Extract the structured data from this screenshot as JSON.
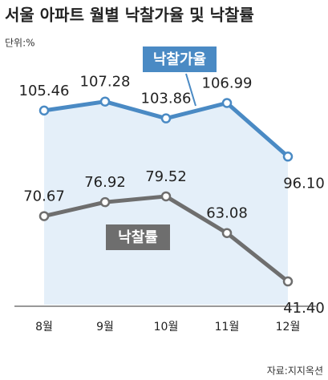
{
  "chart_data": {
    "type": "line",
    "title": "서울 아파트 월별 낙찰가율 및 낙찰률",
    "unit": "단위:%",
    "source": "자료:지지옥션",
    "categories": [
      "8월",
      "9월",
      "10월",
      "11월",
      "12월"
    ],
    "ylim": [
      66,
      110
    ],
    "y2lim": [
      31,
      128
    ],
    "series": [
      {
        "name": "낙찰가율",
        "color": "#4a8ac4",
        "values": [
          105.46,
          107.28,
          103.86,
          106.99,
          96.1
        ],
        "value_labels": [
          "105.46",
          "107.28",
          "103.86",
          "106.99",
          "96.10"
        ]
      },
      {
        "name": "낙찰률",
        "color": "#6e6e6e",
        "axis": "y2",
        "values": [
          70.67,
          76.92,
          79.52,
          63.08,
          41.4
        ],
        "value_labels": [
          "70.67",
          "76.92",
          "79.52",
          "63.08",
          "41.40"
        ]
      }
    ]
  }
}
